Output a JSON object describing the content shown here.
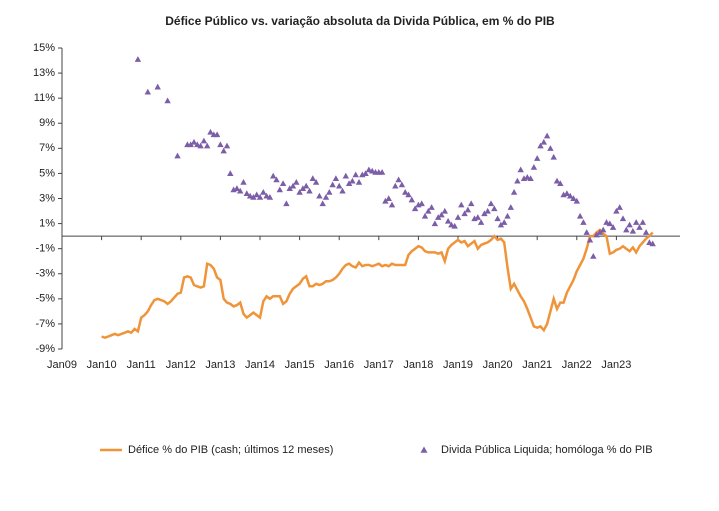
{
  "chart_data": {
    "type": "line",
    "title": "Défice Público vs. variação absoluta da Divida Pública, em % do PIB",
    "categories": [
      "Jan09",
      null,
      null,
      null,
      null,
      null,
      null,
      null,
      null,
      null,
      null,
      null,
      "Jan10",
      null,
      null,
      null,
      null,
      null,
      null,
      null,
      null,
      null,
      null,
      null,
      "Jan11",
      null,
      null,
      null,
      null,
      null,
      null,
      null,
      null,
      null,
      null,
      null,
      "Jan12",
      null,
      null,
      null,
      null,
      null,
      null,
      null,
      null,
      null,
      null,
      null,
      "Jan13",
      null,
      null,
      null,
      null,
      null,
      null,
      null,
      null,
      null,
      null,
      null,
      "Jan14",
      null,
      null,
      null,
      null,
      null,
      null,
      null,
      null,
      null,
      null,
      null,
      "Jan15",
      null,
      null,
      null,
      null,
      null,
      null,
      null,
      null,
      null,
      null,
      null,
      "Jan16",
      null,
      null,
      null,
      null,
      null,
      null,
      null,
      null,
      null,
      null,
      null,
      "Jan17",
      null,
      null,
      null,
      null,
      null,
      null,
      null,
      null,
      null,
      null,
      null,
      "Jan18",
      null,
      null,
      null,
      null,
      null,
      null,
      null,
      null,
      null,
      null,
      null,
      "Jan19",
      null,
      null,
      null,
      null,
      null,
      null,
      null,
      null,
      null,
      null,
      null,
      "Jan20",
      null,
      null,
      null,
      null,
      null,
      null,
      null,
      null,
      null,
      null,
      null,
      "Jan21",
      null,
      null,
      null,
      null,
      null,
      null,
      null,
      null,
      null,
      null,
      null,
      "Jan22",
      null,
      null,
      null,
      null,
      null,
      null,
      null,
      null,
      null,
      null,
      null,
      "Jan23",
      null,
      null,
      null,
      null,
      null,
      null,
      null,
      null,
      null,
      null,
      null
    ],
    "series": [
      {
        "name": "Défice % do PIB (cash; últimos 12 meses)",
        "type": "line",
        "color": "#f0943a",
        "values": [
          null,
          null,
          null,
          null,
          null,
          null,
          null,
          null,
          null,
          null,
          null,
          null,
          -8.0,
          -8.1,
          -8.0,
          -7.9,
          -7.8,
          -7.9,
          -7.8,
          -7.7,
          -7.6,
          -7.7,
          -7.4,
          -7.6,
          -6.5,
          -6.3,
          -6.0,
          -5.5,
          -5.1,
          -5.0,
          -5.1,
          -5.2,
          -5.4,
          -5.2,
          -4.9,
          -4.6,
          -4.5,
          -3.3,
          -3.2,
          -3.3,
          -3.9,
          -4.0,
          -4.1,
          -4.0,
          -2.2,
          -2.3,
          -2.6,
          -3.3,
          -3.5,
          -5.0,
          -5.3,
          -5.4,
          -5.6,
          -5.5,
          -5.3,
          -6.2,
          -6.5,
          -6.3,
          -6.1,
          -6.3,
          -6.5,
          -5.2,
          -4.8,
          -5.0,
          -4.8,
          -4.8,
          -4.8,
          -5.4,
          -5.2,
          -4.6,
          -4.2,
          -4.0,
          -3.8,
          -3.4,
          -3.2,
          -4.0,
          -4.0,
          -3.8,
          -3.9,
          -3.8,
          -3.6,
          -3.6,
          -3.5,
          -3.3,
          -3.0,
          -2.6,
          -2.3,
          -2.2,
          -2.4,
          -2.5,
          -2.1,
          -2.4,
          -2.3,
          -2.3,
          -2.4,
          -2.3,
          -2.2,
          -2.4,
          -2.3,
          -2.4,
          -2.2,
          -2.3,
          -2.3,
          -2.3,
          -2.3,
          -1.5,
          -1.2,
          -1.0,
          -0.8,
          -0.9,
          -1.2,
          -1.3,
          -1.3,
          -1.3,
          -1.4,
          -1.3,
          -2.0,
          -1.0,
          -0.7,
          -0.5,
          -0.3,
          -0.5,
          -0.4,
          -0.8,
          -0.6,
          -0.4,
          -1.0,
          -0.7,
          -0.6,
          -0.5,
          -0.3,
          0.0,
          -0.3,
          -0.2,
          -0.5,
          -2.5,
          -4.2,
          -3.8,
          -4.3,
          -4.8,
          -5.2,
          -5.8,
          -6.5,
          -7.2,
          -7.3,
          -7.2,
          -7.5,
          -7.0,
          -6.0,
          -5.0,
          -5.8,
          -5.3,
          -5.3,
          -4.5,
          -4.0,
          -3.5,
          -2.8,
          -2.3,
          -1.8,
          -1.0,
          0.0,
          0.0,
          0.3,
          0.5,
          0.2,
          0.0,
          -1.4,
          -1.3,
          -1.1,
          -1.0,
          -0.8,
          -1.0,
          -1.2,
          -0.9,
          -1.3,
          -0.8,
          -0.5,
          -0.2,
          0.0,
          0.3
        ]
      },
      {
        "name": "Divida Pública Liquida; homóloga % do PIB",
        "type": "scatter",
        "color": "#7b5ea7",
        "values": [
          null,
          null,
          null,
          null,
          null,
          null,
          null,
          null,
          null,
          null,
          null,
          null,
          null,
          null,
          null,
          null,
          null,
          null,
          null,
          null,
          null,
          null,
          null,
          14.1,
          null,
          null,
          11.5,
          null,
          null,
          11.9,
          null,
          null,
          10.8,
          null,
          null,
          6.4,
          null,
          null,
          7.3,
          7.3,
          7.5,
          7.3,
          7.2,
          7.6,
          7.2,
          8.3,
          8.1,
          8.1,
          7.3,
          6.8,
          7.2,
          5.0,
          3.7,
          3.8,
          3.6,
          4.3,
          3.4,
          3.2,
          3.1,
          3.3,
          3.1,
          3.5,
          3.2,
          3.1,
          4.8,
          4.5,
          3.7,
          4.2,
          2.6,
          3.8,
          4.0,
          4.3,
          3.5,
          3.8,
          4.0,
          3.6,
          4.6,
          4.3,
          3.2,
          2.6,
          3.1,
          3.5,
          4.1,
          4.6,
          4.0,
          3.6,
          4.8,
          4.2,
          4.4,
          4.9,
          4.3,
          4.9,
          5.0,
          5.3,
          5.2,
          5.1,
          5.1,
          5.1,
          2.8,
          3.0,
          2.5,
          4.0,
          4.5,
          4.1,
          3.5,
          3.3,
          2.9,
          2.2,
          2.5,
          2.6,
          1.6,
          2.0,
          2.3,
          1.0,
          1.5,
          1.7,
          2.0,
          1.2,
          0.9,
          0.8,
          1.5,
          2.5,
          1.8,
          2.1,
          2.6,
          1.4,
          1.5,
          1.1,
          1.8,
          2.0,
          2.6,
          2.2,
          1.4,
          0.9,
          1.1,
          1.6,
          2.3,
          3.5,
          4.4,
          5.3,
          4.6,
          4.7,
          4.6,
          5.5,
          6.2,
          7.2,
          7.5,
          8.0,
          7.0,
          6.3,
          4.4,
          4.2,
          3.3,
          3.4,
          3.2,
          3.0,
          2.8,
          1.6,
          1.1,
          0.3,
          -0.3,
          -1.6,
          0.1,
          0.3,
          0.5,
          1.1,
          1.0,
          0.7,
          2.0,
          2.3,
          1.4,
          0.5,
          0.9,
          0.4,
          1.1,
          0.7,
          1.1,
          0.3,
          -0.5,
          -0.6
        ]
      }
    ],
    "ylim": [
      -9,
      15
    ],
    "yticks": [
      {
        "value": -9,
        "label": "-9%"
      },
      {
        "value": -7,
        "label": "-7%"
      },
      {
        "value": -5,
        "label": "-5%"
      },
      {
        "value": -3,
        "label": "-3%"
      },
      {
        "value": -1,
        "label": "-1%"
      },
      {
        "value": 1,
        "label": "1%"
      },
      {
        "value": 3,
        "label": "3%"
      },
      {
        "value": 5,
        "label": "5%"
      },
      {
        "value": 7,
        "label": "7%"
      },
      {
        "value": 9,
        "label": "9%"
      },
      {
        "value": 11,
        "label": "11%"
      },
      {
        "value": 13,
        "label": "13%"
      },
      {
        "value": 15,
        "label": "15%"
      }
    ],
    "legend": "bottom"
  }
}
